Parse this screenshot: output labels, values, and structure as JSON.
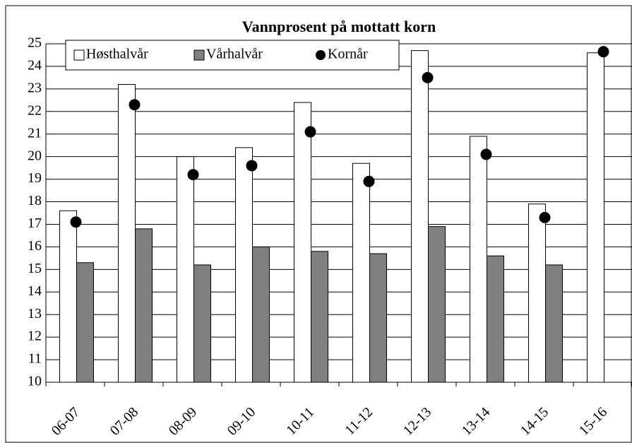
{
  "chart_data": {
    "type": "bar",
    "title": "Vannprosent på mottatt korn",
    "categories": [
      "06-07",
      "07-08",
      "08-09",
      "09-10",
      "10-11",
      "11-12",
      "12-13",
      "13-14",
      "14-15",
      "15-16"
    ],
    "series": [
      {
        "name": "Høsthalvår",
        "color": "#ffffff",
        "type": "bar",
        "values": [
          17.6,
          23.2,
          20.0,
          20.4,
          22.4,
          19.7,
          24.7,
          20.9,
          17.9,
          24.6
        ]
      },
      {
        "name": "Vårhalvår",
        "color": "#808080",
        "type": "bar",
        "values": [
          15.3,
          16.8,
          15.2,
          16.0,
          15.8,
          15.7,
          16.9,
          15.6,
          15.2,
          null
        ]
      },
      {
        "name": "Kornår",
        "color": "#000000",
        "type": "scatter",
        "values": [
          17.1,
          22.3,
          19.2,
          19.6,
          21.1,
          18.9,
          23.5,
          20.1,
          17.3,
          24.65
        ]
      }
    ],
    "ylim": [
      10,
      25
    ],
    "yticks": [
      10,
      11,
      12,
      13,
      14,
      15,
      16,
      17,
      18,
      19,
      20,
      21,
      22,
      23,
      24,
      25
    ],
    "grid": true,
    "legend": "upper left"
  }
}
